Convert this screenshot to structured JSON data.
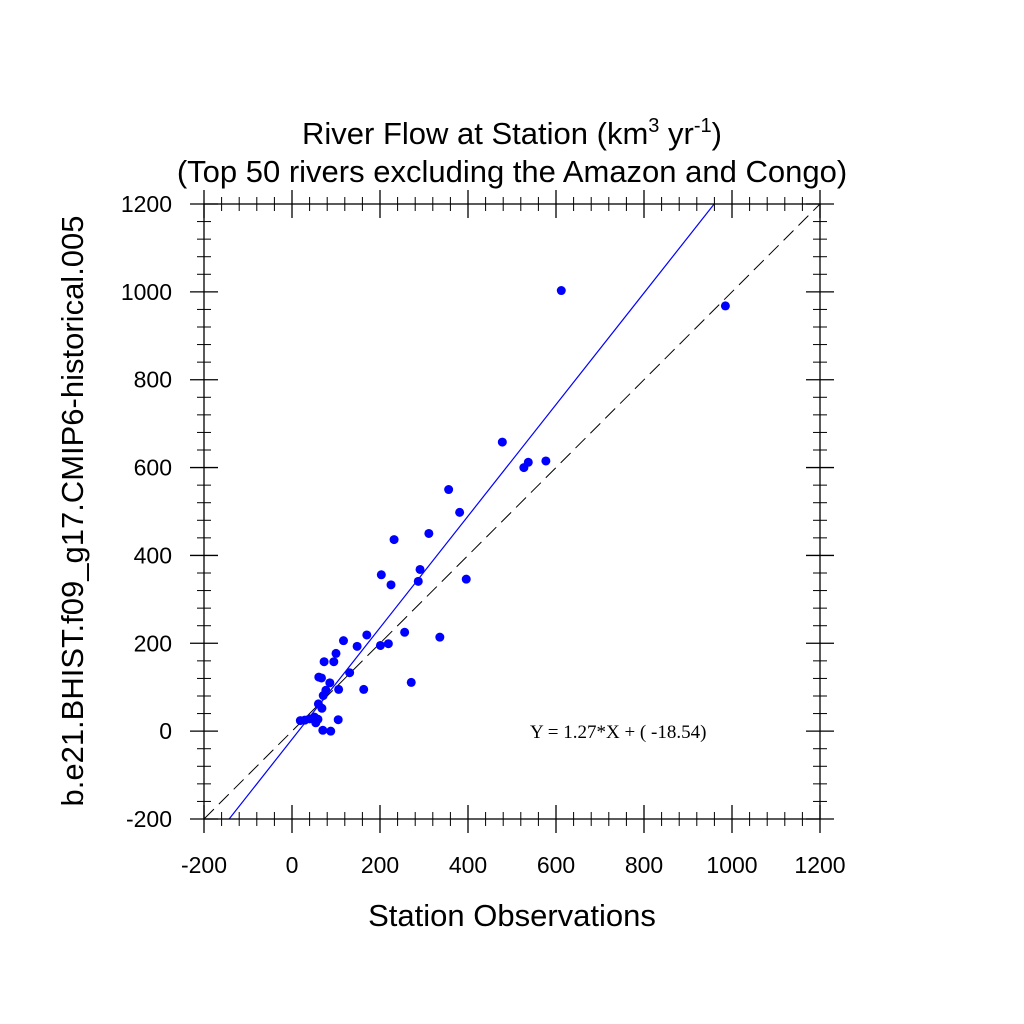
{
  "chart_data": {
    "type": "scatter",
    "title_line1_prefix": "River Flow at Station (km",
    "title_line1_sup1": "3",
    "title_line1_mid": " yr",
    "title_line1_sup2": "-1",
    "title_line1_suffix": ")",
    "title_line2": "(Top 50 rivers excluding the Amazon and Congo)",
    "xlabel": "Station Observations",
    "ylabel": "b.e21.BHIST.f09_g17.CMIP6-historical.005",
    "xlim": [
      -200,
      1200
    ],
    "ylim": [
      -200,
      1200
    ],
    "xticks": [
      -200,
      0,
      200,
      400,
      600,
      800,
      1000,
      1200
    ],
    "yticks": [
      -200,
      0,
      200,
      400,
      600,
      800,
      1000,
      1200
    ],
    "xtick_labels": [
      "-200",
      "0",
      "200",
      "400",
      "600",
      "800",
      "1000",
      "1200"
    ],
    "ytick_labels": [
      "-200",
      "0",
      "200",
      "400",
      "600",
      "800",
      "1000",
      "1200"
    ],
    "minor_tick_step": 40,
    "regression": {
      "slope": 1.27,
      "intercept": -18.54,
      "color": "#0000ff"
    },
    "equation_label": "Y =  1.27*X + (  -18.54)",
    "one_to_one_line": {
      "style": "dashed",
      "color": "#000000"
    },
    "point_color": "#0000ff",
    "points": [
      [
        985,
        968
      ],
      [
        612,
        1003
      ],
      [
        577,
        615
      ],
      [
        537,
        612
      ],
      [
        527,
        600
      ],
      [
        478,
        658
      ],
      [
        381,
        498
      ],
      [
        356,
        550
      ],
      [
        396,
        346
      ],
      [
        311,
        450
      ],
      [
        291,
        368
      ],
      [
        287,
        341
      ],
      [
        232,
        436
      ],
      [
        225,
        333
      ],
      [
        203,
        356
      ],
      [
        256,
        225
      ],
      [
        336,
        214
      ],
      [
        271,
        111
      ],
      [
        219,
        199
      ],
      [
        201,
        195
      ],
      [
        170,
        219
      ],
      [
        148,
        193
      ],
      [
        117,
        206
      ],
      [
        131,
        133
      ],
      [
        163,
        95
      ],
      [
        100,
        177
      ],
      [
        95,
        158
      ],
      [
        73,
        158
      ],
      [
        106,
        95
      ],
      [
        86,
        110
      ],
      [
        77,
        93
      ],
      [
        71,
        81
      ],
      [
        67,
        121
      ],
      [
        61,
        123
      ],
      [
        68,
        52
      ],
      [
        60,
        62
      ],
      [
        59,
        27
      ],
      [
        51,
        32
      ],
      [
        40,
        28
      ],
      [
        29,
        25
      ],
      [
        19,
        24
      ],
      [
        54,
        19
      ],
      [
        70,
        2
      ],
      [
        88,
        0
      ],
      [
        105,
        26
      ]
    ]
  }
}
